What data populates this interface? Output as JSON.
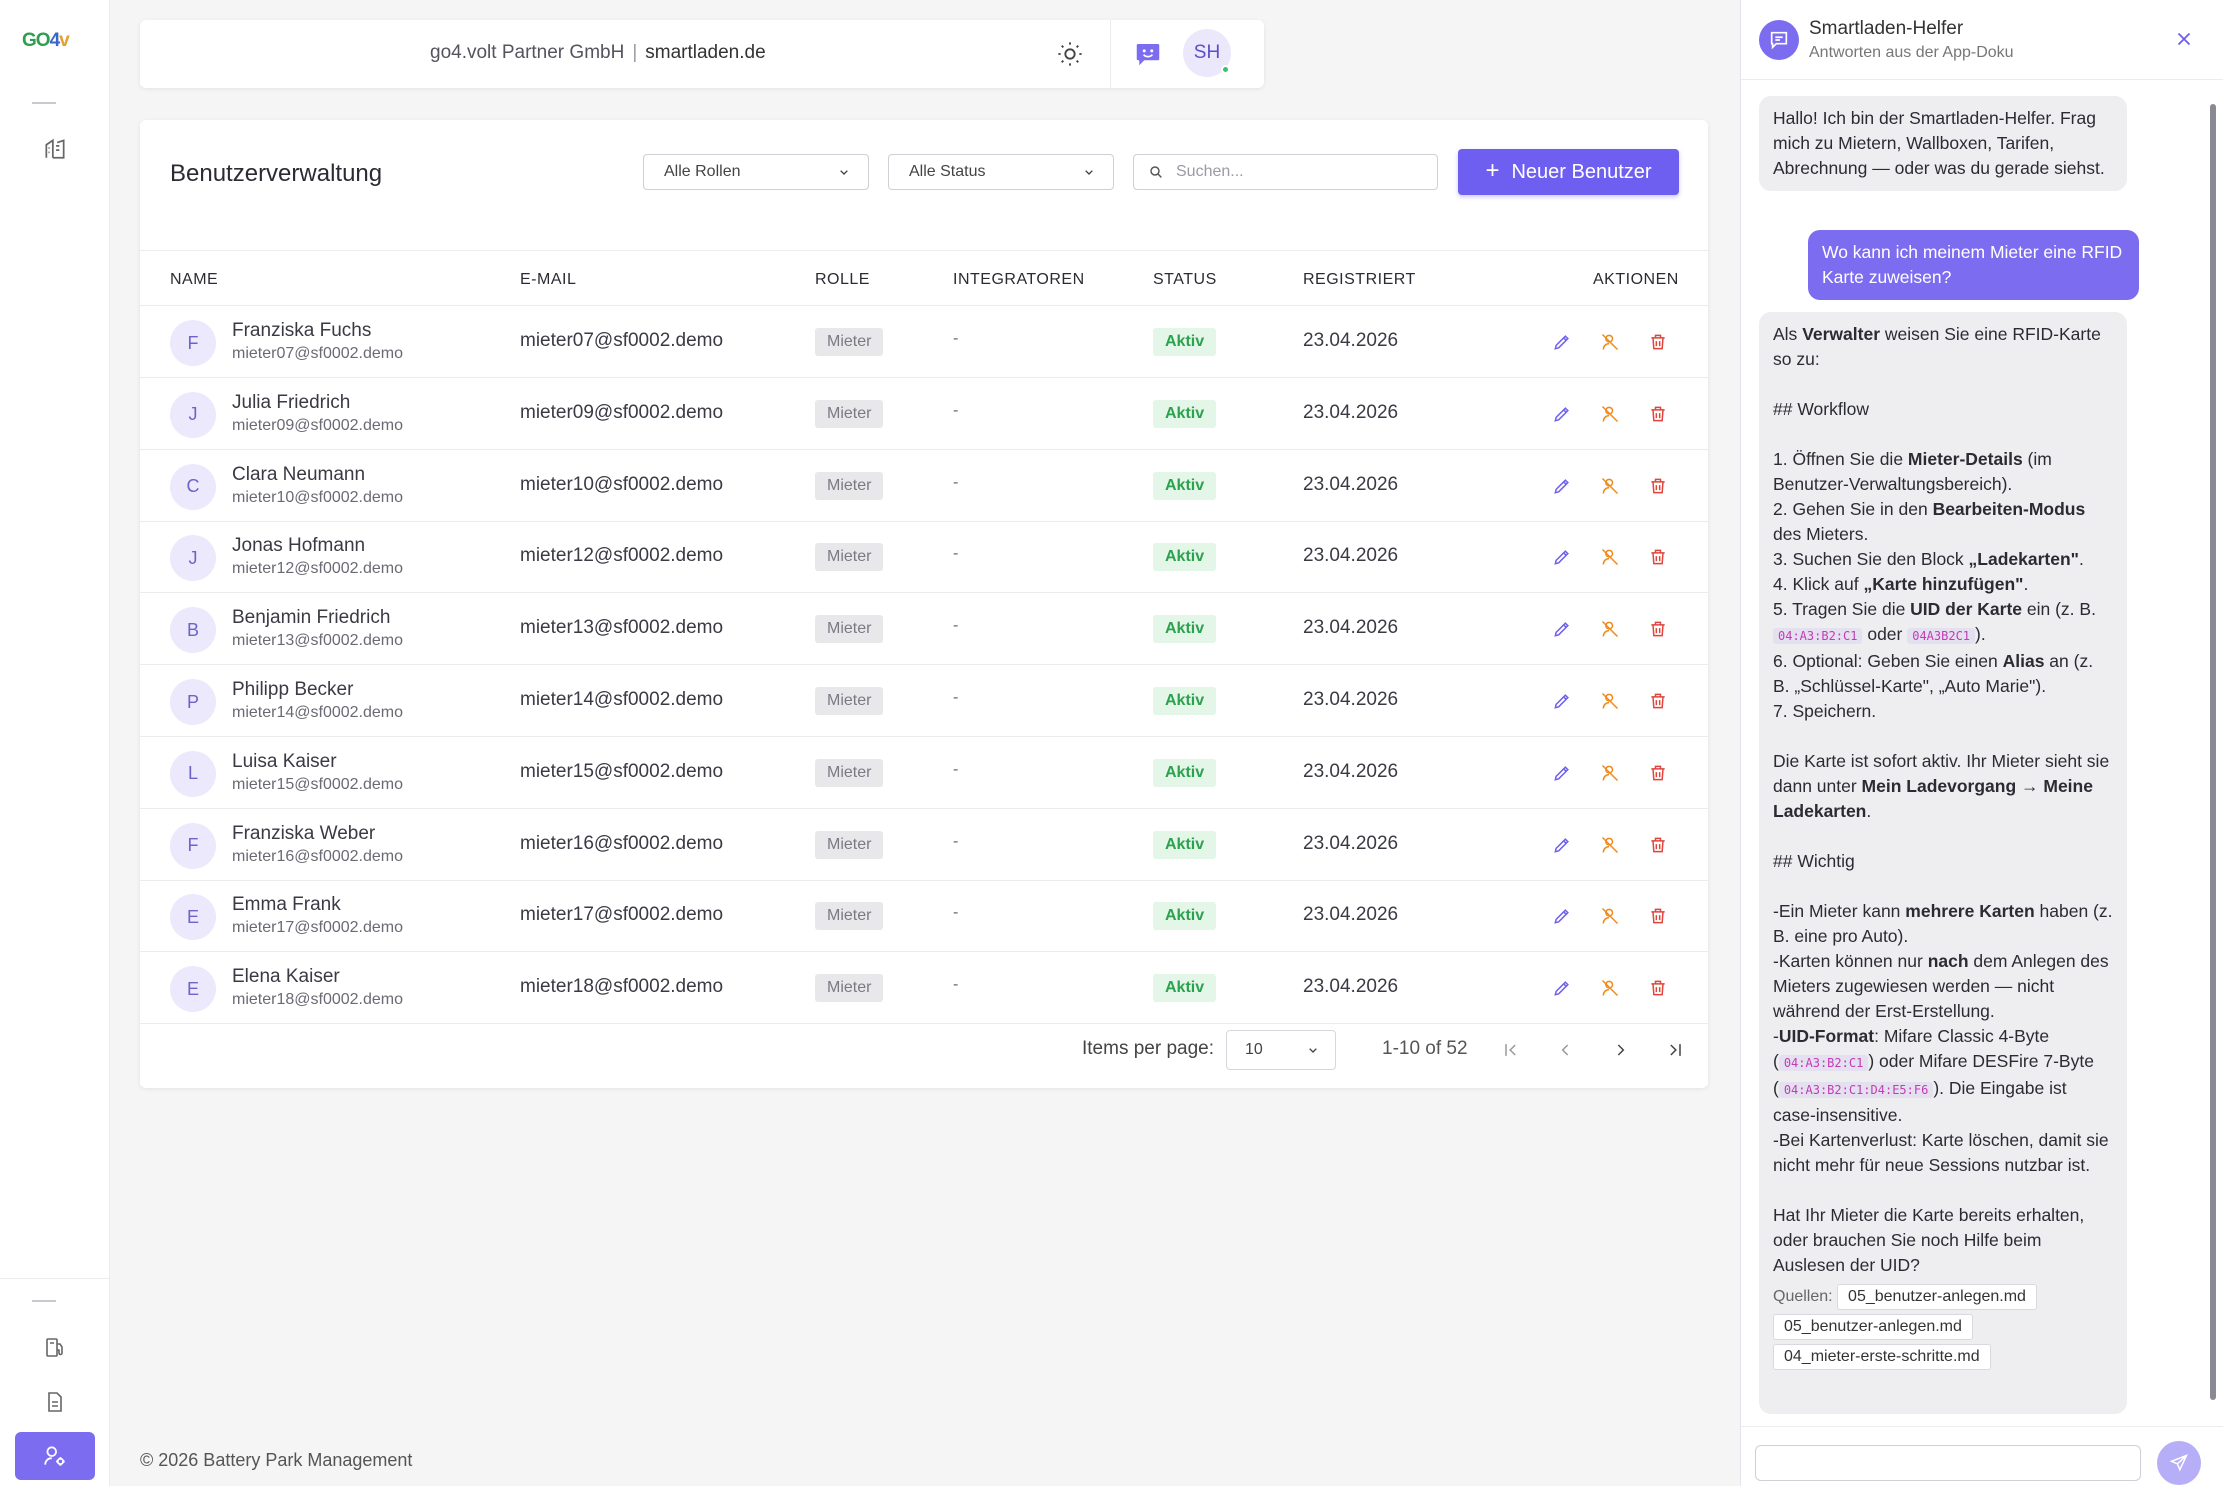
{
  "brand": {
    "logo_g": "GO",
    "logo_4": "4",
    "logo_v": "v"
  },
  "header": {
    "company": "go4.volt Partner GmbH",
    "separator": "|",
    "site": "smartladen.de",
    "user_initials": "SH"
  },
  "users_page": {
    "title": "Benutzerverwaltung",
    "role_filter": "Alle Rollen",
    "status_filter": "Alle Status",
    "search_placeholder": "Suchen...",
    "new_user_label": "Neuer Benutzer",
    "columns": [
      "NAME",
      "E-MAIL",
      "ROLLE",
      "INTEGRATOREN",
      "STATUS",
      "REGISTRIERT",
      "AKTIONEN"
    ],
    "rows": [
      {
        "initial": "F",
        "name": "Franziska Fuchs",
        "sub": "mieter07@sf0002.demo",
        "email": "mieter07@sf0002.demo",
        "role": "Mieter",
        "integrators": "-",
        "status": "Aktiv",
        "registered": "23.04.2026"
      },
      {
        "initial": "J",
        "name": "Julia Friedrich",
        "sub": "mieter09@sf0002.demo",
        "email": "mieter09@sf0002.demo",
        "role": "Mieter",
        "integrators": "-",
        "status": "Aktiv",
        "registered": "23.04.2026"
      },
      {
        "initial": "C",
        "name": "Clara Neumann",
        "sub": "mieter10@sf0002.demo",
        "email": "mieter10@sf0002.demo",
        "role": "Mieter",
        "integrators": "-",
        "status": "Aktiv",
        "registered": "23.04.2026"
      },
      {
        "initial": "J",
        "name": "Jonas Hofmann",
        "sub": "mieter12@sf0002.demo",
        "email": "mieter12@sf0002.demo",
        "role": "Mieter",
        "integrators": "-",
        "status": "Aktiv",
        "registered": "23.04.2026"
      },
      {
        "initial": "B",
        "name": "Benjamin Friedrich",
        "sub": "mieter13@sf0002.demo",
        "email": "mieter13@sf0002.demo",
        "role": "Mieter",
        "integrators": "-",
        "status": "Aktiv",
        "registered": "23.04.2026"
      },
      {
        "initial": "P",
        "name": "Philipp Becker",
        "sub": "mieter14@sf0002.demo",
        "email": "mieter14@sf0002.demo",
        "role": "Mieter",
        "integrators": "-",
        "status": "Aktiv",
        "registered": "23.04.2026"
      },
      {
        "initial": "L",
        "name": "Luisa Kaiser",
        "sub": "mieter15@sf0002.demo",
        "email": "mieter15@sf0002.demo",
        "role": "Mieter",
        "integrators": "-",
        "status": "Aktiv",
        "registered": "23.04.2026"
      },
      {
        "initial": "F",
        "name": "Franziska Weber",
        "sub": "mieter16@sf0002.demo",
        "email": "mieter16@sf0002.demo",
        "role": "Mieter",
        "integrators": "-",
        "status": "Aktiv",
        "registered": "23.04.2026"
      },
      {
        "initial": "E",
        "name": "Emma Frank",
        "sub": "mieter17@sf0002.demo",
        "email": "mieter17@sf0002.demo",
        "role": "Mieter",
        "integrators": "-",
        "status": "Aktiv",
        "registered": "23.04.2026"
      },
      {
        "initial": "E",
        "name": "Elena Kaiser",
        "sub": "mieter18@sf0002.demo",
        "email": "mieter18@sf0002.demo",
        "role": "Mieter",
        "integrators": "-",
        "status": "Aktiv",
        "registered": "23.04.2026"
      }
    ],
    "pagination": {
      "items_per_page_label": "Items per page:",
      "items_per_page": "10",
      "range": "1-10 of 52"
    }
  },
  "footer": {
    "copyright": "© 2026 Battery Park Management"
  },
  "chat": {
    "title": "Smartladen-Helfer",
    "subtitle": "Antworten aus der App-Doku",
    "greeting": "Hallo! Ich bin der Smartladen-Helfer. Frag mich zu Mietern, Wallboxen, Tarifen, Abrechnung — oder was du gerade siehst.",
    "user_question": "Wo kann ich meinem Mieter eine RFID Karte zuweisen?",
    "answer": {
      "intro_a": "Als ",
      "intro_b": "Verwalter",
      "intro_c": " weisen Sie eine RFID-Karte so zu:",
      "h_workflow": "## Workflow",
      "s1_a": "1. Öffnen Sie die ",
      "s1_b": "Mieter-Details",
      "s1_c": " (im Benutzer-Verwaltungsbereich).",
      "s2_a": "2. Gehen Sie in den ",
      "s2_b": "Bearbeiten-Modus",
      "s2_c": " des Mieters.",
      "s3_a": "3. Suchen Sie den Block ",
      "s3_b": "„Ladekarten\"",
      "s3_c": ".",
      "s4_a": "4. Klick auf ",
      "s4_b": "„Karte hinzufügen\"",
      "s4_c": ".",
      "s5_a": "5. Tragen Sie die ",
      "s5_b": "UID der Karte",
      "s5_c": " ein (z. B. ",
      "s5_code1": "04:A3:B2:C1",
      "s5_d": " oder ",
      "s5_code2": "04A3B2C1",
      "s5_e": ").",
      "s6_a": "6. Optional: Geben Sie einen ",
      "s6_b": "Alias",
      "s6_c": " an (z. B. „Schlüssel-Karte\", „Auto Marie\").",
      "s7": "7. Speichern.",
      "p_a": "Die Karte ist sofort aktiv. Ihr Mieter sieht sie dann unter ",
      "p_b": "Mein Ladevorgang → Meine Ladekarten",
      "p_c": ".",
      "h_wichtig": "## Wichtig",
      "w1_a": "-Ein Mieter kann ",
      "w1_b": "mehrere Karten",
      "w1_c": " haben (z. B. eine pro Auto).",
      "w2_a": "-Karten können nur ",
      "w2_b": "nach",
      "w2_c": " dem Anlegen des Mieters zugewiesen werden — nicht während der Erst-Erstellung.",
      "w3_a": "-",
      "w3_b": "UID-Format",
      "w3_c": ": Mifare Classic 4-Byte (",
      "w3_code1": "04:A3:B2:C1",
      "w3_d": ") oder Mifare DESFire 7-Byte (",
      "w3_code2": "04:A3:B2:C1:D4:E5:F6",
      "w3_e": "). Die Eingabe ist case-insensitive.",
      "w4": "-Bei Kartenverlust: Karte löschen, damit sie nicht mehr für neue Sessions nutzbar ist.",
      "closing": "Hat Ihr Mieter die Karte bereits erhalten, oder brauchen Sie noch Hilfe beim Auslesen der UID?",
      "sources_label": "Quellen:",
      "sources": [
        "05_benutzer-anlegen.md",
        "05_benutzer-anlegen.md",
        "04_mieter-erste-schritte.md"
      ]
    }
  },
  "colors": {
    "accent": "#6e5ff0",
    "status_green": "#2ca24f",
    "edit": "#6e5ff0",
    "toggle": "#f08a1c",
    "delete": "#e0443b"
  },
  "icons": {
    "theme": "sun-icon",
    "chat": "chat-bot-icon",
    "edit": "pencil-icon",
    "deactivate": "user-off-icon",
    "delete": "trash-icon"
  }
}
